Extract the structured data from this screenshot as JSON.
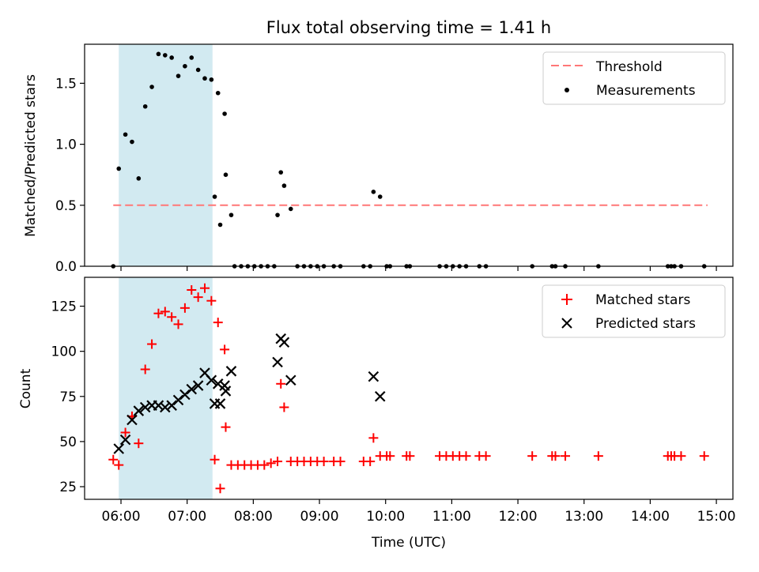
{
  "title": "Flux total observing time = 1.41 h",
  "colors": {
    "threshold": "#ff7777",
    "measurements": "#000000",
    "matched": "#ff0000",
    "predicted": "#000000",
    "shade": "#add8e6"
  },
  "chart_data": [
    {
      "type": "scatter",
      "panel": "top",
      "ylabel": "Matched/Predicted stars",
      "xlim_hours": [
        5.45,
        15.25
      ],
      "ylim": [
        0,
        1.82
      ],
      "yticks": [
        0.0,
        0.5,
        1.0,
        1.5
      ],
      "ytick_labels": [
        "0.0",
        "0.5",
        "1.0",
        "1.5"
      ],
      "shaded_interval": [
        "05:58",
        "07:23"
      ],
      "threshold": {
        "name": "Threshold",
        "value": 0.5,
        "x_start": "05:53",
        "x_end": "14:52",
        "style": "dashed"
      },
      "legend": {
        "placement": "top-right",
        "entries": [
          "Threshold",
          "Measurements"
        ]
      },
      "series": [
        {
          "name": "Measurements",
          "points": [
            [
              "05:53",
              0.0
            ],
            [
              "05:58",
              0.8
            ],
            [
              "06:04",
              1.08
            ],
            [
              "06:10",
              1.02
            ],
            [
              "06:16",
              0.72
            ],
            [
              "06:22",
              1.31
            ],
            [
              "06:28",
              1.47
            ],
            [
              "06:34",
              1.74
            ],
            [
              "06:40",
              1.73
            ],
            [
              "06:46",
              1.71
            ],
            [
              "06:52",
              1.56
            ],
            [
              "06:58",
              1.64
            ],
            [
              "07:04",
              1.71
            ],
            [
              "07:10",
              1.61
            ],
            [
              "07:16",
              1.54
            ],
            [
              "07:22",
              1.53
            ],
            [
              "07:28",
              1.42
            ],
            [
              "07:34",
              1.25
            ],
            [
              "07:25",
              0.57
            ],
            [
              "07:30",
              0.34
            ],
            [
              "07:35",
              0.75
            ],
            [
              "07:40",
              0.42
            ],
            [
              "07:43",
              0.0
            ],
            [
              "07:49",
              0.0
            ],
            [
              "07:55",
              0.0
            ],
            [
              "08:01",
              0.0
            ],
            [
              "08:07",
              0.0
            ],
            [
              "08:13",
              0.0
            ],
            [
              "08:19",
              0.0
            ],
            [
              "08:22",
              0.42
            ],
            [
              "08:25",
              0.77
            ],
            [
              "08:28",
              0.66
            ],
            [
              "08:34",
              0.47
            ],
            [
              "08:40",
              0.0
            ],
            [
              "08:46",
              0.0
            ],
            [
              "08:52",
              0.0
            ],
            [
              "08:58",
              0.0
            ],
            [
              "09:04",
              0.0
            ],
            [
              "09:13",
              0.0
            ],
            [
              "09:19",
              0.0
            ],
            [
              "09:40",
              0.0
            ],
            [
              "09:46",
              0.0
            ],
            [
              "09:49",
              0.61
            ],
            [
              "09:55",
              0.57
            ],
            [
              "10:01",
              0.0
            ],
            [
              "10:04",
              0.0
            ],
            [
              "10:19",
              0.0
            ],
            [
              "10:22",
              0.0
            ],
            [
              "10:49",
              0.0
            ],
            [
              "10:55",
              0.0
            ],
            [
              "11:01",
              0.0
            ],
            [
              "11:07",
              0.0
            ],
            [
              "11:13",
              0.0
            ],
            [
              "11:25",
              0.0
            ],
            [
              "11:31",
              0.0
            ],
            [
              "12:13",
              0.0
            ],
            [
              "12:31",
              0.0
            ],
            [
              "12:34",
              0.0
            ],
            [
              "12:43",
              0.0
            ],
            [
              "13:13",
              0.0
            ],
            [
              "14:16",
              0.0
            ],
            [
              "14:19",
              0.0
            ],
            [
              "14:22",
              0.0
            ],
            [
              "14:28",
              0.0
            ],
            [
              "14:49",
              0.0
            ]
          ]
        }
      ]
    },
    {
      "type": "scatter",
      "panel": "bottom",
      "xlabel": "Time (UTC)",
      "ylabel": "Count",
      "xlim_hours": [
        5.45,
        15.25
      ],
      "xticks": [
        "06:00",
        "07:00",
        "08:00",
        "09:00",
        "10:00",
        "11:00",
        "12:00",
        "13:00",
        "14:00",
        "15:00"
      ],
      "ylim": [
        18,
        141
      ],
      "yticks": [
        25,
        50,
        75,
        100,
        125
      ],
      "ytick_labels": [
        "25",
        "50",
        "75",
        "100",
        "125"
      ],
      "shaded_interval": [
        "05:58",
        "07:23"
      ],
      "legend": {
        "placement": "top-right",
        "entries": [
          "Matched stars",
          "Predicted stars"
        ]
      },
      "series": [
        {
          "name": "Matched stars",
          "marker": "plus",
          "points": [
            [
              "05:53",
              40
            ],
            [
              "05:58",
              37
            ],
            [
              "06:04",
              55
            ],
            [
              "06:10",
              64
            ],
            [
              "06:16",
              49
            ],
            [
              "06:22",
              90
            ],
            [
              "06:28",
              104
            ],
            [
              "06:34",
              121
            ],
            [
              "06:40",
              122
            ],
            [
              "06:46",
              119
            ],
            [
              "06:52",
              115
            ],
            [
              "06:58",
              124
            ],
            [
              "07:04",
              134
            ],
            [
              "07:10",
              130
            ],
            [
              "07:16",
              135
            ],
            [
              "07:22",
              128
            ],
            [
              "07:28",
              116
            ],
            [
              "07:34",
              101
            ],
            [
              "07:25",
              40
            ],
            [
              "07:30",
              24
            ],
            [
              "07:35",
              58
            ],
            [
              "07:40",
              37
            ],
            [
              "07:46",
              37
            ],
            [
              "07:52",
              37
            ],
            [
              "07:58",
              37
            ],
            [
              "08:04",
              37
            ],
            [
              "08:10",
              37
            ],
            [
              "08:16",
              38
            ],
            [
              "08:22",
              39
            ],
            [
              "08:25",
              82
            ],
            [
              "08:28",
              69
            ],
            [
              "08:34",
              39
            ],
            [
              "08:40",
              39
            ],
            [
              "08:46",
              39
            ],
            [
              "08:52",
              39
            ],
            [
              "08:58",
              39
            ],
            [
              "09:04",
              39
            ],
            [
              "09:13",
              39
            ],
            [
              "09:19",
              39
            ],
            [
              "09:40",
              39
            ],
            [
              "09:46",
              39
            ],
            [
              "09:49",
              52
            ],
            [
              "09:55",
              42
            ],
            [
              "10:01",
              42
            ],
            [
              "10:04",
              42
            ],
            [
              "10:19",
              42
            ],
            [
              "10:22",
              42
            ],
            [
              "10:49",
              42
            ],
            [
              "10:55",
              42
            ],
            [
              "11:01",
              42
            ],
            [
              "11:07",
              42
            ],
            [
              "11:13",
              42
            ],
            [
              "11:25",
              42
            ],
            [
              "11:31",
              42
            ],
            [
              "12:13",
              42
            ],
            [
              "12:31",
              42
            ],
            [
              "12:34",
              42
            ],
            [
              "12:43",
              42
            ],
            [
              "13:13",
              42
            ],
            [
              "14:16",
              42
            ],
            [
              "14:19",
              42
            ],
            [
              "14:22",
              42
            ],
            [
              "14:28",
              42
            ],
            [
              "14:49",
              42
            ]
          ]
        },
        {
          "name": "Predicted stars",
          "marker": "x",
          "points": [
            [
              "05:58",
              46
            ],
            [
              "06:04",
              51
            ],
            [
              "06:10",
              62
            ],
            [
              "06:16",
              67
            ],
            [
              "06:22",
              69
            ],
            [
              "06:28",
              70
            ],
            [
              "06:34",
              70
            ],
            [
              "06:40",
              69
            ],
            [
              "06:46",
              70
            ],
            [
              "06:52",
              73
            ],
            [
              "06:58",
              76
            ],
            [
              "07:04",
              79
            ],
            [
              "07:10",
              81
            ],
            [
              "07:16",
              88
            ],
            [
              "07:22",
              84
            ],
            [
              "07:28",
              82
            ],
            [
              "07:34",
              81
            ],
            [
              "07:25",
              71
            ],
            [
              "07:30",
              71
            ],
            [
              "07:35",
              78
            ],
            [
              "07:40",
              89
            ],
            [
              "08:22",
              94
            ],
            [
              "08:25",
              107
            ],
            [
              "08:28",
              105
            ],
            [
              "08:34",
              84
            ],
            [
              "09:49",
              86
            ],
            [
              "09:55",
              75
            ]
          ]
        }
      ]
    }
  ]
}
